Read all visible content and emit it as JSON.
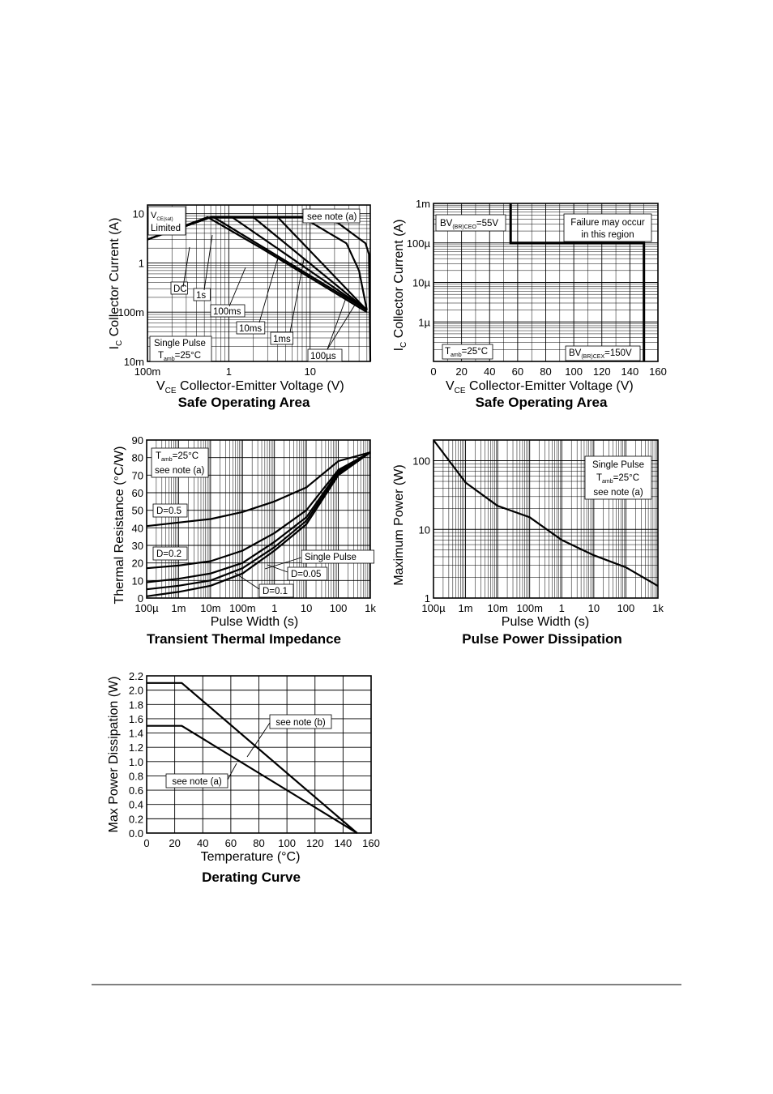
{
  "chart_data": [
    {
      "type": "line",
      "title": "Safe Operating Area",
      "xlabel": "Collector-Emitter Voltage (V)",
      "xlabel_symbol": "V",
      "xlabel_sub": "CE",
      "ylabel": "Collector Current (A)",
      "ylabel_symbol": "I",
      "ylabel_sub": "C",
      "x_scale": "log",
      "y_scale": "log",
      "xlim": [
        0.1,
        55
      ],
      "ylim": [
        0.01,
        15
      ],
      "x_ticks": [
        {
          "v": 0.1,
          "label": "100m"
        },
        {
          "v": 1,
          "label": "1"
        },
        {
          "v": 10,
          "label": "10"
        }
      ],
      "y_ticks": [
        {
          "v": 0.01,
          "label": "10m"
        },
        {
          "v": 0.1,
          "label": "100m"
        },
        {
          "v": 1,
          "label": "1"
        },
        {
          "v": 10,
          "label": "10"
        }
      ],
      "grid": true,
      "series": [
        {
          "name": "DC",
          "x": [
            0.1,
            0.55,
            2.5,
            50
          ],
          "y": [
            3,
            8.5,
            2,
            0.1
          ]
        },
        {
          "name": "1s",
          "x": [
            0.1,
            0.6,
            0.65,
            50
          ],
          "y": [
            3,
            8.5,
            8.5,
            0.11
          ]
        },
        {
          "name": "100ms",
          "x": [
            0.1,
            0.6,
            1.1,
            50
          ],
          "y": [
            3,
            8.5,
            8.5,
            0.11
          ]
        },
        {
          "name": "10ms",
          "x": [
            0.1,
            0.6,
            2,
            50
          ],
          "y": [
            3,
            8.5,
            8.5,
            0.11
          ]
        },
        {
          "name": "1ms",
          "x": [
            0.1,
            0.6,
            4,
            50
          ],
          "y": [
            3,
            8.5,
            8.5,
            0.11
          ]
        },
        {
          "name": "100µs",
          "x": [
            0.1,
            0.6,
            8,
            28,
            40,
            50
          ],
          "y": [
            3,
            8.5,
            8.5,
            2.5,
            0.7,
            0.11
          ]
        },
        {
          "name": "",
          "x": [
            0.1,
            0.6,
            10,
            22,
            48,
            53,
            55
          ],
          "y": [
            3,
            8.5,
            8.5,
            6.5,
            2.5,
            1.5,
            0.01
          ]
        }
      ],
      "annotations": {
        "vce_sat_symbol": "V",
        "vce_sat_sub": "CE(sat)",
        "vce_sat_limited": "Limited",
        "note": "see note (a)",
        "single_pulse": "Single Pulse",
        "tamb_symbol": "T",
        "tamb_sub": "amb",
        "tamb_value": "=25°C",
        "curve_labels": [
          "DC",
          "1s",
          "100ms",
          "10ms",
          "1ms",
          "100µs"
        ]
      }
    },
    {
      "type": "line",
      "title": "Safe Operating Area",
      "xlabel": "Collector-Emitter Voltage (V)",
      "xlabel_symbol": "V",
      "xlabel_sub": "CE",
      "ylabel": "Collector Current (A)",
      "ylabel_symbol": "I",
      "ylabel_sub": "C",
      "x_scale": "linear",
      "y_scale": "log",
      "xlim": [
        0,
        160
      ],
      "ylim": [
        1e-07,
        0.001
      ],
      "x_ticks": [
        0,
        20,
        40,
        60,
        80,
        100,
        120,
        140,
        160
      ],
      "y_ticks": [
        {
          "v": 1e-06,
          "label": "1µ"
        },
        {
          "v": 1e-05,
          "label": "10µ"
        },
        {
          "v": 0.0001,
          "label": "100µ"
        },
        {
          "v": 0.001,
          "label": "1m"
        }
      ],
      "grid": true,
      "series": [
        {
          "name": "Failure boundary",
          "x": [
            55,
            55,
            150,
            150
          ],
          "y": [
            0.001,
            0.0001,
            0.0001,
            1e-07
          ]
        }
      ],
      "annotations": {
        "bv_ceo_symbol": "BV",
        "bv_ceo_sub": "(BR)CEO",
        "bv_ceo_value": "=55V",
        "bv_cex_symbol": "BV",
        "bv_cex_sub": "(BR)CEX",
        "bv_cex_value": "=150V",
        "failure_line1": "Failure may occur",
        "failure_line2": "in this region",
        "tamb_symbol": "T",
        "tamb_sub": "amb",
        "tamb_value": "=25°C"
      }
    },
    {
      "type": "line",
      "title": "Transient Thermal Impedance",
      "xlabel": "Pulse Width (s)",
      "ylabel": "Thermal Resistance (°C/W)",
      "x_scale": "log",
      "y_scale": "linear",
      "xlim": [
        0.0001,
        1000
      ],
      "ylim": [
        0,
        90
      ],
      "x_ticks": [
        {
          "v": 0.0001,
          "label": "100µ"
        },
        {
          "v": 0.001,
          "label": "1m"
        },
        {
          "v": 0.01,
          "label": "10m"
        },
        {
          "v": 0.1,
          "label": "100m"
        },
        {
          "v": 1,
          "label": "1"
        },
        {
          "v": 10,
          "label": "10"
        },
        {
          "v": 100,
          "label": "100"
        },
        {
          "v": 1000,
          "label": "1k"
        }
      ],
      "y_ticks": [
        0,
        10,
        20,
        30,
        40,
        50,
        60,
        70,
        80,
        90
      ],
      "grid": true,
      "series": [
        {
          "name": "D=0.5",
          "x": [
            0.0001,
            0.001,
            0.01,
            0.1,
            1,
            10,
            100,
            1000
          ],
          "y": [
            41,
            43,
            45,
            49,
            55,
            63,
            78,
            83
          ]
        },
        {
          "name": "D=0.2",
          "x": [
            0.0001,
            0.001,
            0.01,
            0.1,
            1,
            10,
            100,
            1000
          ],
          "y": [
            17,
            18.5,
            21,
            27,
            37,
            50,
            73,
            83
          ]
        },
        {
          "name": "D=0.1",
          "x": [
            0.0001,
            0.001,
            0.01,
            0.1,
            1,
            10,
            100,
            1000
          ],
          "y": [
            9,
            11,
            14,
            20,
            32,
            46,
            72,
            83
          ]
        },
        {
          "name": "D=0.05",
          "x": [
            0.0001,
            0.001,
            0.01,
            0.1,
            1,
            10,
            100,
            1000
          ],
          "y": [
            5,
            7,
            10,
            17,
            29,
            44,
            71,
            83
          ]
        },
        {
          "name": "Single Pulse",
          "x": [
            0.0001,
            0.001,
            0.01,
            0.1,
            1,
            10,
            100,
            1000
          ],
          "y": [
            1,
            3.5,
            7,
            14,
            27,
            42,
            70,
            83
          ]
        }
      ],
      "annotations": {
        "tamb_symbol": "T",
        "tamb_sub": "amb",
        "tamb_value": "=25°C",
        "note": "see note (a)",
        "labels": [
          "D=0.5",
          "D=0.2",
          "Single Pulse",
          "D=0.05",
          "D=0.1"
        ]
      }
    },
    {
      "type": "line",
      "title": "Pulse Power Dissipation",
      "xlabel": "Pulse Width (s)",
      "ylabel": "Maximum Power (W)",
      "x_scale": "log",
      "y_scale": "log",
      "xlim": [
        0.0001,
        1000
      ],
      "ylim": [
        1,
        200
      ],
      "x_ticks": [
        {
          "v": 0.0001,
          "label": "100µ"
        },
        {
          "v": 0.001,
          "label": "1m"
        },
        {
          "v": 0.01,
          "label": "10m"
        },
        {
          "v": 0.1,
          "label": "100m"
        },
        {
          "v": 1,
          "label": "1"
        },
        {
          "v": 10,
          "label": "10"
        },
        {
          "v": 100,
          "label": "100"
        },
        {
          "v": 1000,
          "label": "1k"
        }
      ],
      "y_ticks": [
        {
          "v": 1,
          "label": "1"
        },
        {
          "v": 10,
          "label": "10"
        },
        {
          "v": 100,
          "label": "100"
        }
      ],
      "grid": true,
      "series": [
        {
          "name": "Single Pulse",
          "x": [
            0.0001,
            0.001,
            0.01,
            0.1,
            1,
            10,
            100,
            1000
          ],
          "y": [
            200,
            48,
            22,
            15,
            7,
            4.2,
            2.8,
            1.5
          ]
        }
      ],
      "annotations": {
        "single_pulse": "Single Pulse",
        "tamb_symbol": "T",
        "tamb_sub": "amb",
        "tamb_value": "=25°C",
        "note": "see note (a)"
      }
    },
    {
      "type": "line",
      "title": "Derating Curve",
      "xlabel": "Temperature (°C)",
      "ylabel": "Max Power Dissipation (W)",
      "x_scale": "linear",
      "y_scale": "linear",
      "xlim": [
        0,
        160
      ],
      "ylim": [
        0,
        2.2
      ],
      "x_ticks": [
        0,
        20,
        40,
        60,
        80,
        100,
        120,
        140,
        160
      ],
      "y_ticks": [
        "0.0",
        "0.2",
        "0.4",
        "0.6",
        "0.8",
        "1.0",
        "1.2",
        "1.4",
        "1.6",
        "1.8",
        "2.0",
        "2.2"
      ],
      "grid": true,
      "series": [
        {
          "name": "see note (b)",
          "x": [
            0,
            25,
            150
          ],
          "y": [
            2.1,
            2.1,
            0
          ]
        },
        {
          "name": "see note (a)",
          "x": [
            0,
            25,
            150
          ],
          "y": [
            1.5,
            1.5,
            0
          ]
        }
      ],
      "annotations": {
        "note_b": "see note (b)",
        "note_a": "see note (a)"
      }
    }
  ]
}
